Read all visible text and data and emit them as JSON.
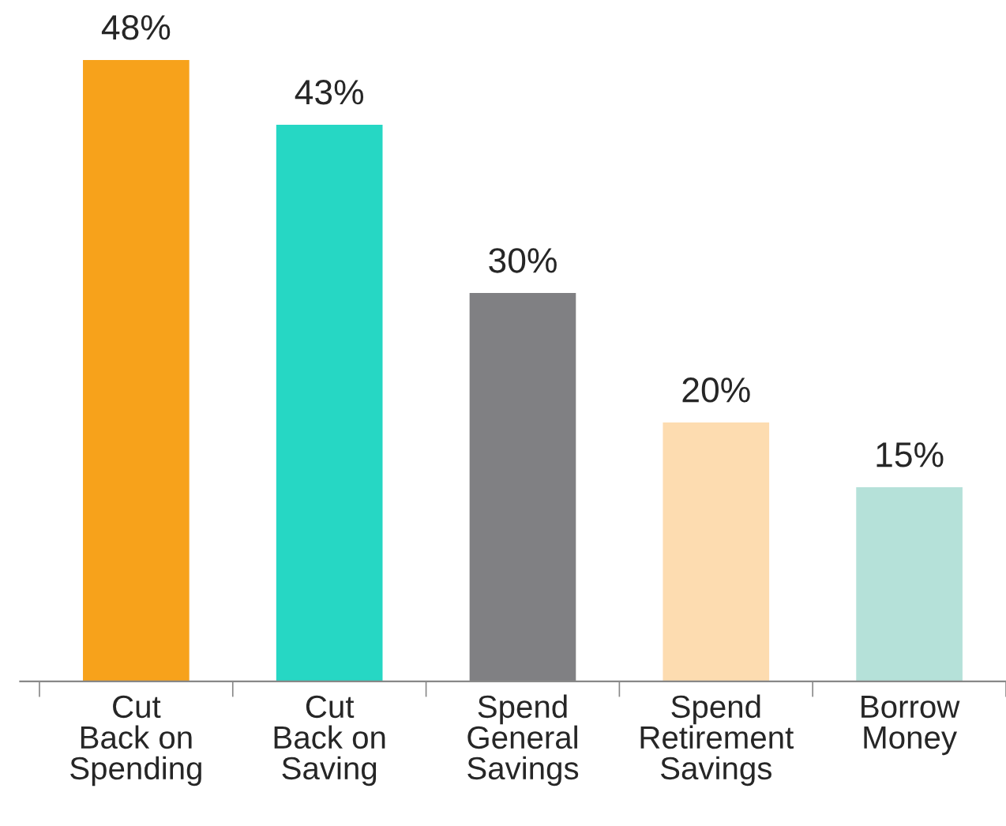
{
  "chart_data": {
    "type": "bar",
    "categories": [
      "Cut\nBack on\nSpending",
      "Cut\nBack on\nSaving",
      "Spend\nGeneral\nSavings",
      "Spend\nRetirement\nSavings",
      "Borrow\nMoney"
    ],
    "values": [
      48,
      43,
      30,
      20,
      15
    ],
    "colors": [
      "#f7a21b",
      "#26d7c4",
      "#808083",
      "#fddcb0",
      "#b5e1d9"
    ],
    "value_labels": [
      "48%",
      "43%",
      "30%",
      "20%",
      "15%"
    ],
    "grid": false,
    "legend": false
  }
}
